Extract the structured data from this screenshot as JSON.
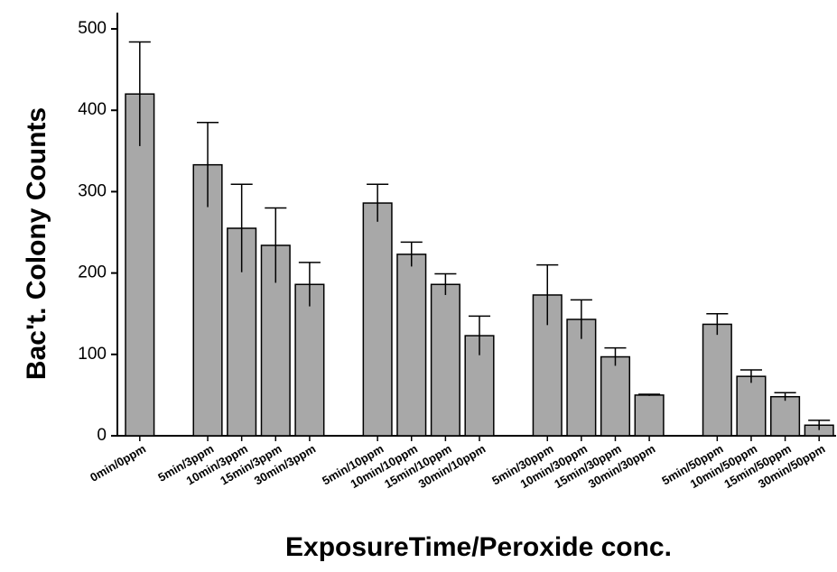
{
  "chart_data": {
    "type": "bar",
    "y_label": "Bac't. Colony Counts",
    "x_label": "ExposureTime/Peroxide conc.",
    "categories": [
      "0min/0ppm",
      null,
      "5min/3ppm",
      "10min/3ppm",
      "15min/3ppm",
      "30min/3ppm",
      null,
      "5min/10ppm",
      "10min/10ppm",
      "15min/10ppm",
      "30min/10ppm",
      null,
      "5min/30ppm",
      "10min/30ppm",
      "15min/30ppm",
      "30min/30ppm",
      null,
      "5min/50ppm",
      "10min/50ppm",
      "15min/50ppm",
      "30min/50ppm"
    ],
    "values": [
      420,
      null,
      333,
      255,
      234,
      186,
      null,
      286,
      223,
      186,
      123,
      null,
      173,
      143,
      97,
      50,
      null,
      137,
      73,
      48,
      13
    ],
    "errors": [
      64,
      null,
      52,
      54,
      46,
      27,
      null,
      23,
      15,
      13,
      24,
      null,
      37,
      24,
      11,
      1,
      null,
      13,
      8,
      5,
      6
    ],
    "color": "#a8a8a8",
    "ylim": [
      0,
      520
    ],
    "yticks": [
      0,
      100,
      200,
      300,
      400,
      500
    ]
  }
}
